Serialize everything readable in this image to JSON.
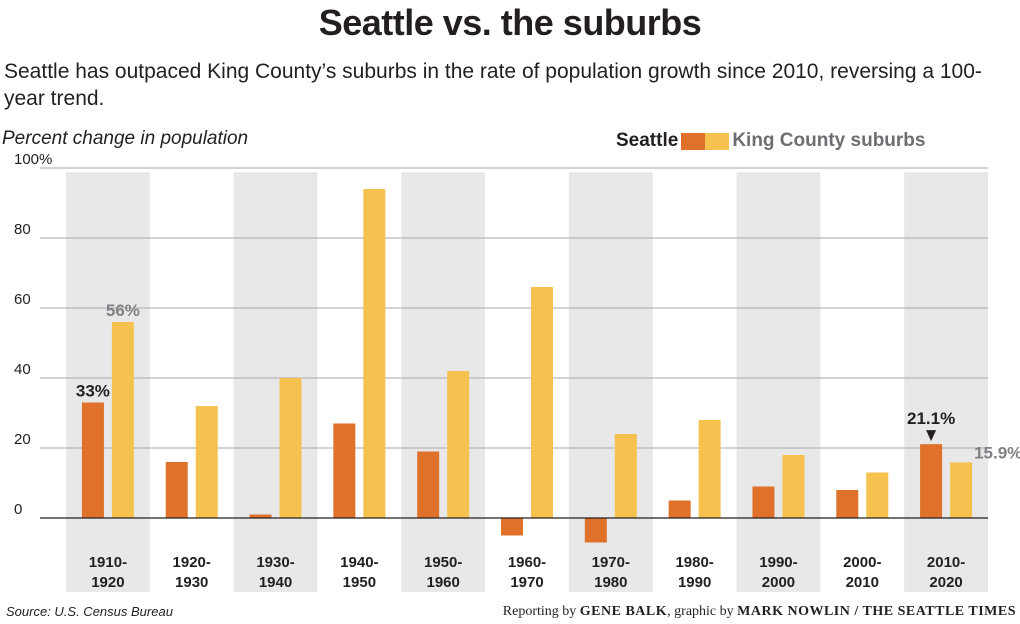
{
  "header": {
    "title": "Seattle vs. the suburbs",
    "subtitle": "Seattle has outpaced King County’s suburbs in the rate of population growth since 2010, reversing a 100-year trend."
  },
  "colors": {
    "seattle": "#e0712a",
    "suburbs": "#f5c24f",
    "shade": "#e8e8e9",
    "grid": "#a7a9ac"
  },
  "chart_data": {
    "type": "bar",
    "title": "Seattle vs. the suburbs",
    "ylabel": "Percent change in population",
    "ylim": [
      -10,
      100
    ],
    "yticks": [
      0,
      20,
      40,
      60,
      80,
      100
    ],
    "ytick_labels": [
      "0",
      "20",
      "40",
      "60",
      "80",
      "100%"
    ],
    "grid": true,
    "legend_position": "top-right",
    "categories": [
      "1910-1920",
      "1920-1930",
      "1930-1940",
      "1940-1950",
      "1950-1960",
      "1960-1970",
      "1970-1980",
      "1980-1990",
      "1990-2000",
      "2000-2010",
      "2010-2020"
    ],
    "series": [
      {
        "name": "Seattle",
        "color": "#e0712a",
        "values": [
          33,
          16,
          1,
          27,
          19,
          -5,
          -7,
          5,
          9,
          8,
          21.1
        ]
      },
      {
        "name": "King County suburbs",
        "color": "#f5c24f",
        "values": [
          56,
          32,
          40,
          94,
          42,
          66,
          24,
          28,
          18,
          13,
          15.9
        ]
      }
    ],
    "annotations": [
      {
        "text": "33%",
        "series": 0,
        "category": 0
      },
      {
        "text": "56%",
        "series": 1,
        "category": 0
      },
      {
        "text": "21.1%",
        "series": 0,
        "category": 10
      },
      {
        "text": "15.9%",
        "series": 1,
        "category": 10
      }
    ]
  },
  "footer": {
    "source": "Source: U.S. Census Bureau",
    "credit_pre": "Reporting by ",
    "credit_name1": "GENE BALK",
    "credit_mid": ", graphic by ",
    "credit_name2": "MARK NOWLIN",
    "credit_post": " / THE SEATTLE TIMES"
  }
}
